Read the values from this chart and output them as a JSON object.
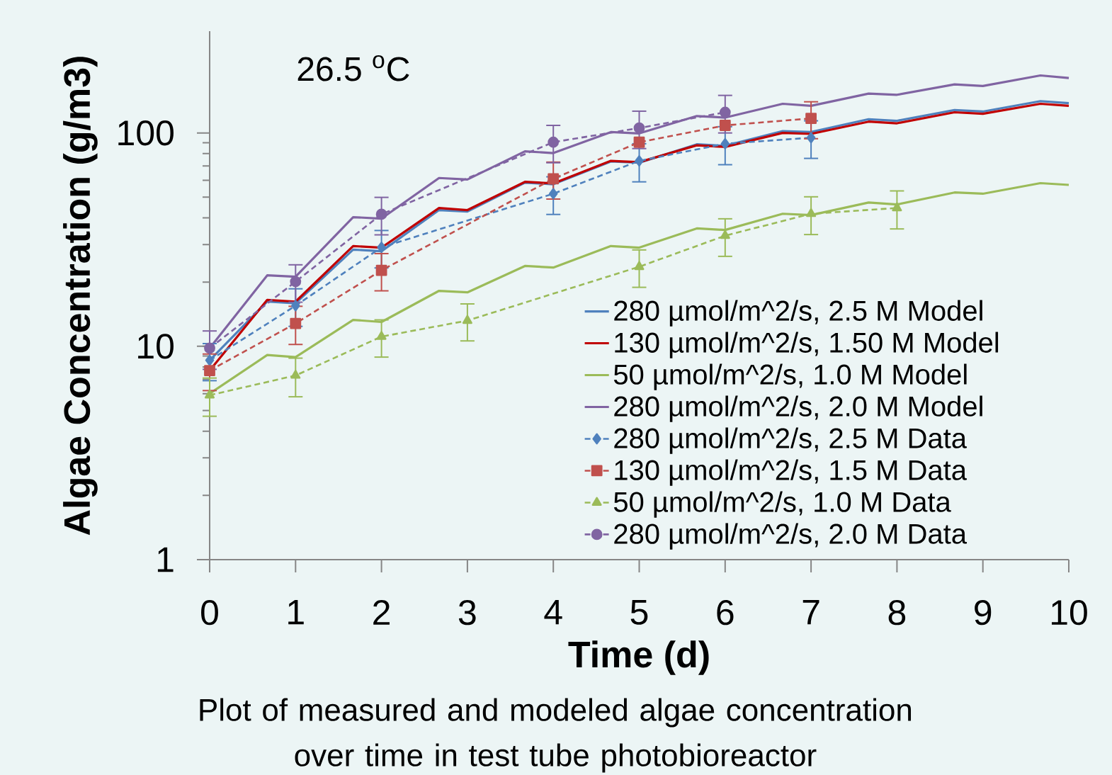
{
  "chart_data": {
    "type": "line",
    "xlabel": "Time (d)",
    "ylabel": "Algae Concentration (g/m3)",
    "xlim": [
      0,
      10
    ],
    "ylim": [
      1,
      300
    ],
    "xticks": [
      0,
      1,
      2,
      3,
      4,
      5,
      6,
      7,
      8,
      9,
      10
    ],
    "yticks": [
      1,
      10,
      100
    ],
    "log": "y",
    "legend": "bottom right",
    "annotations": [
      "26.5 $^{o}$C",
      "Plot of measured and modeled algae concentration over time in test tube photobioreactor"
    ],
    "series": [
      {
        "name": "280 µmol/m^2/s, 2.5 M Model",
        "color": "#4f81bd",
        "marker": "none",
        "line_style": "solid",
        "x": [
          0,
          0.67,
          1,
          1.67,
          2,
          2.67,
          3,
          3.67,
          4,
          4.67,
          5,
          5.67,
          6,
          6.67,
          7,
          7.67,
          8,
          8.67,
          9,
          9.67,
          10
        ],
        "values": [
          8.6,
          16.2,
          15.9,
          28.4,
          27.9,
          43.5,
          42.8,
          58.5,
          57.5,
          73.5,
          72.5,
          88.5,
          87,
          102,
          101,
          116,
          114,
          128,
          126,
          141,
          138
        ]
      },
      {
        "name": "130 µmol/m^2/s, 1.50 M Model",
        "color": "#c00000",
        "marker": "none",
        "line_style": "solid",
        "x": [
          0,
          0.67,
          1,
          1.67,
          2,
          2.67,
          3,
          3.67,
          4,
          4.67,
          5,
          5.67,
          6,
          6.67,
          7,
          7.67,
          8,
          8.67,
          9,
          9.67,
          10
        ],
        "values": [
          7.7,
          16.5,
          16.2,
          29.5,
          29,
          44.5,
          43.5,
          59,
          58,
          74,
          73,
          87.5,
          86,
          100,
          99,
          113,
          111,
          125,
          123,
          137,
          134
        ]
      },
      {
        "name": "50 µmol/m^2/s, 1.0 M Model",
        "color": "#9bbb59",
        "marker": "none",
        "line_style": "solid",
        "x": [
          0,
          0.67,
          1,
          1.67,
          2,
          2.67,
          3,
          3.67,
          4,
          4.67,
          5,
          5.67,
          6,
          6.67,
          7,
          7.67,
          8,
          8.67,
          9,
          9.67,
          10
        ],
        "values": [
          6.0,
          9.1,
          8.9,
          13.3,
          13.0,
          18.2,
          17.9,
          23.8,
          23.4,
          29.5,
          29.0,
          35.7,
          35.1,
          41.8,
          41.2,
          47.2,
          46.2,
          52.6,
          51.9,
          58.2,
          57.1
        ]
      },
      {
        "name": "280 µmol/m^2/s, 2.0 M Model",
        "color": "#8064a2",
        "marker": "none",
        "line_style": "solid",
        "x": [
          0,
          0.67,
          1,
          1.67,
          2,
          2.67,
          3,
          3.67,
          4,
          4.67,
          5,
          5.67,
          6,
          6.67,
          7,
          7.67,
          8,
          8.67,
          9,
          9.67,
          10
        ],
        "values": [
          9.8,
          21.5,
          21.2,
          40.3,
          39.7,
          61.5,
          60.5,
          82,
          80.5,
          101,
          99.5,
          120,
          118,
          137,
          134,
          153,
          151,
          169,
          166,
          186,
          181
        ]
      },
      {
        "name": "280 µmol/m^2/s, 2.5 M Data",
        "color": "#4f81bd",
        "marker": "diamond",
        "line_style": "dashed",
        "x": [
          0,
          1,
          2,
          4,
          5,
          6,
          7
        ],
        "values": [
          8.6,
          15.5,
          29.1,
          51.9,
          74,
          89,
          95
        ],
        "errors": [
          1.7,
          3.1,
          5.8,
          10.4,
          15,
          18,
          19
        ]
      },
      {
        "name": "130 µmol/m^2/s, 1.5 M Data",
        "color": "#c0504d",
        "marker": "square",
        "line_style": "dashed",
        "x": [
          0,
          1,
          2,
          4,
          5,
          6,
          7
        ],
        "values": [
          7.7,
          12.8,
          22.7,
          61,
          90.5,
          108.5,
          117
        ],
        "errors": [
          1.5,
          2.6,
          4.5,
          12,
          null,
          null,
          23
        ]
      },
      {
        "name": "50 µmol/m^2/s, 1.0 M Data",
        "color": "#9bbb59",
        "marker": "triangle",
        "line_style": "dashed",
        "x": [
          0,
          1,
          2,
          3,
          5,
          6,
          7,
          8
        ],
        "values": [
          5.9,
          7.3,
          11.1,
          13.2,
          23.6,
          33,
          41.8,
          44.5
        ],
        "errors": [
          1.2,
          1.5,
          2.2,
          2.6,
          4.7,
          6.6,
          8.4,
          9
        ]
      },
      {
        "name": "280 µmol/m^2/s, 2.0 M Data",
        "color": "#8064a2",
        "marker": "circle",
        "line_style": "dashed",
        "x": [
          0,
          1,
          2,
          4,
          5,
          6
        ],
        "values": [
          9.8,
          20.1,
          41.6,
          90.5,
          105.5,
          125
        ],
        "errors": [
          2,
          4,
          8.3,
          18,
          21,
          25
        ]
      }
    ]
  }
}
